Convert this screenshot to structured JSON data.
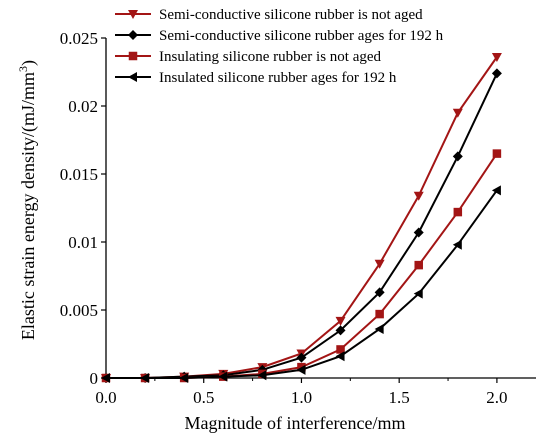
{
  "chart_data": {
    "type": "line",
    "xlabel": "Magnitude of interference/mm",
    "ylabel_main": "Elastic strain energy density/(mJ/mm",
    "ylabel_sup": "3",
    "ylabel_close": ")",
    "xlim": [
      0,
      2.2
    ],
    "ylim": [
      0,
      0.025
    ],
    "x_ticks": [
      0.0,
      0.5,
      1.0,
      1.5,
      2.0
    ],
    "x_tick_labels": [
      "0.0",
      "0.5",
      "1.0",
      "1.5",
      "2.0"
    ],
    "y_ticks": [
      0,
      0.005,
      0.01,
      0.015,
      0.02,
      0.025
    ],
    "y_tick_labels": [
      "0",
      "0.005",
      "0.01",
      "0.015",
      "0.02",
      "0.025"
    ],
    "grid": false,
    "legend_position": "top",
    "x": [
      0.0,
      0.2,
      0.4,
      0.6,
      0.8,
      1.0,
      1.2,
      1.4,
      1.6,
      1.8,
      2.0
    ],
    "series": [
      {
        "name": "Semi-conductive silicone rubber is not aged",
        "color": "#a31515",
        "marker": "triangle-down",
        "x": [
          0.0,
          0.2,
          0.4,
          0.6,
          0.8,
          1.0,
          1.2,
          1.4,
          1.6,
          1.8,
          2.0
        ],
        "values": [
          0.0,
          0.0,
          0.0001,
          0.0003,
          0.0008,
          0.0018,
          0.0042,
          0.0084,
          0.0134,
          0.0195,
          0.0236
        ]
      },
      {
        "name": "Semi-conductive silicone rubber ages for 192 h",
        "color": "#000000",
        "marker": "diamond",
        "x": [
          0.0,
          0.2,
          0.4,
          0.6,
          0.8,
          1.0,
          1.2,
          1.4,
          1.6,
          1.8,
          2.0
        ],
        "values": [
          0.0,
          0.0,
          0.0001,
          0.0002,
          0.0006,
          0.0015,
          0.0035,
          0.0063,
          0.0107,
          0.0163,
          0.0224
        ]
      },
      {
        "name": "Insulating silicone rubber is not aged",
        "color": "#a31515",
        "marker": "square",
        "x": [
          0.0,
          0.2,
          0.4,
          0.6,
          0.8,
          1.0,
          1.2,
          1.4,
          1.6,
          1.8,
          2.0
        ],
        "values": [
          0.0,
          0.0,
          0.0,
          0.0001,
          0.0003,
          0.0008,
          0.0021,
          0.0047,
          0.0083,
          0.0122,
          0.0165
        ]
      },
      {
        "name": "Insulated silicone rubber ages for 192 h",
        "color": "#000000",
        "marker": "triangle-left",
        "x": [
          0.0,
          0.2,
          0.4,
          0.6,
          0.8,
          1.0,
          1.2,
          1.4,
          1.6,
          1.8,
          2.0
        ],
        "values": [
          0.0,
          0.0,
          0.0,
          0.0001,
          0.0002,
          0.0006,
          0.0016,
          0.0036,
          0.0062,
          0.0098,
          0.0138
        ]
      }
    ]
  }
}
